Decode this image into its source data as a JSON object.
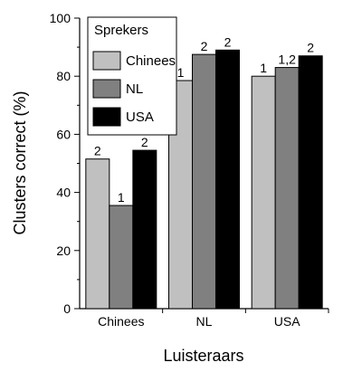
{
  "chart_data": {
    "type": "bar",
    "title": "",
    "xlabel": "Luisteraars",
    "ylabel": "Clusters correct (%)",
    "ylim": [
      0,
      100
    ],
    "yticks": [
      0,
      20,
      40,
      60,
      80,
      100
    ],
    "categories": [
      "Chinees",
      "NL",
      "USA"
    ],
    "legend": {
      "title": "Sprekers",
      "placement": "top-left"
    },
    "series": [
      {
        "name": "Chinees",
        "color": "#c0c0c0",
        "values": [
          51.5,
          78.5,
          80
        ],
        "labels": [
          "2",
          "1",
          "1"
        ]
      },
      {
        "name": "NL",
        "color": "#808080",
        "values": [
          35.5,
          87.5,
          83
        ],
        "labels": [
          "1",
          "2",
          "1,2"
        ]
      },
      {
        "name": "USA",
        "color": "#000000",
        "values": [
          54.5,
          89,
          87
        ],
        "labels": [
          "2",
          "2",
          "2"
        ]
      }
    ]
  }
}
